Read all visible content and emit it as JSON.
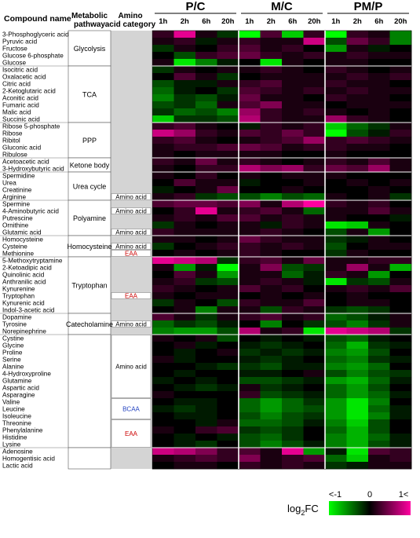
{
  "chart_data": {
    "type": "heatmap",
    "headers": {
      "compound": "Compound name",
      "pathway": "Metabolic pathway",
      "category": "Amino acid category"
    },
    "groups": [
      "P/C",
      "M/C",
      "PM/P"
    ],
    "timepoints": [
      "1h",
      "2h",
      "6h",
      "20h"
    ],
    "colorbar": {
      "label_base": "log",
      "label_sub": "2",
      "label_tail": "FC",
      "low_label": "<-1",
      "mid_label": "0",
      "high_label": "1<",
      "low_color": "#00ff00",
      "mid_color": "#000000",
      "high_color": "#ff00a0"
    },
    "compounds": [
      "3-Phosphoglyceric acid",
      "Pyruvic acid",
      "Fructose",
      "Glucose 6-phosphate",
      "Glucose",
      "Isocitric acid",
      "Oxalacetic acid",
      "Citric acid",
      "2-Ketoglutaric acid",
      "Aconitic acid",
      "Fumaric acid",
      "Malic acid",
      "Succinic acid",
      "Ribose 5-phosphate",
      "Ribose",
      "Ribitol",
      "Gluconic acid",
      "Ribulose",
      "Acetoacetic acid",
      "3-Hydroxybutyric acid",
      "Spermidine",
      "Urea",
      "Creatinine",
      "Arginine",
      "Spermine",
      "4-Aminobutyric acid",
      "Putrescine",
      "Ornithine",
      "Glutamic acid",
      "Homocysteine",
      "Cysteine",
      "Methionine",
      "5-Methoxytryptamine",
      "2-Ketoadipic acid",
      "Quinolinic acid",
      "Anthranilic acid",
      "Kynurenine",
      "Tryptophan",
      "Kynurenic acid",
      "Indol-3-acetic acid",
      "Dopamine",
      "Tyrosine",
      "Norepinephrine",
      "Cystine",
      "Glycine",
      "Proline",
      "Serine",
      "Alanine",
      "4-Hydroxyproline",
      "Glutamine",
      "Aspartic acid",
      "Asparagine",
      "Valine",
      "Leucine",
      "Isoleucine",
      "Threonine",
      "Phenylalanine",
      "Histidine",
      "Lysine",
      "Adenosine",
      "Homogentisic acid",
      "Lactic acid"
    ],
    "pathways": [
      {
        "name": "Glycolysis",
        "start": 0,
        "end": 4
      },
      {
        "name": "TCA",
        "start": 5,
        "end": 12
      },
      {
        "name": "PPP",
        "start": 13,
        "end": 17
      },
      {
        "name": "Ketone body",
        "start": 18,
        "end": 19
      },
      {
        "name": "Urea cycle",
        "start": 20,
        "end": 23
      },
      {
        "name": "Polyamine",
        "start": 24,
        "end": 28
      },
      {
        "name": "Homocysteine",
        "start": 29,
        "end": 31
      },
      {
        "name": "Tryptophan",
        "start": 32,
        "end": 39
      },
      {
        "name": "Catecholamine",
        "start": 40,
        "end": 42
      },
      {
        "name": "",
        "start": 43,
        "end": 58
      },
      {
        "name": "",
        "start": 59,
        "end": 61
      }
    ],
    "categories": [
      {
        "name": "",
        "start": 0,
        "end": 22,
        "color": "#000000",
        "white": false
      },
      {
        "name": "Amino acid",
        "start": 23,
        "end": 23,
        "color": "#000000",
        "white": true
      },
      {
        "name": "",
        "start": 24,
        "end": 24,
        "color": "#000000",
        "white": false
      },
      {
        "name": "Amino acid",
        "start": 25,
        "end": 25,
        "color": "#000000",
        "white": true
      },
      {
        "name": "",
        "start": 26,
        "end": 27,
        "color": "#000000",
        "white": false
      },
      {
        "name": "Amino acid",
        "start": 28,
        "end": 28,
        "color": "#000000",
        "white": true
      },
      {
        "name": "",
        "start": 29,
        "end": 29,
        "color": "#000000",
        "white": false
      },
      {
        "name": "Amino acid",
        "start": 30,
        "end": 30,
        "color": "#000000",
        "white": true
      },
      {
        "name": "EAA",
        "start": 31,
        "end": 31,
        "color": "#cc0000",
        "white": true
      },
      {
        "name": "",
        "start": 32,
        "end": 36,
        "color": "#000000",
        "white": false
      },
      {
        "name": "EAA",
        "start": 37,
        "end": 37,
        "color": "#cc0000",
        "white": true
      },
      {
        "name": "",
        "start": 38,
        "end": 40,
        "color": "#000000",
        "white": false
      },
      {
        "name": "Amino acid",
        "start": 41,
        "end": 41,
        "color": "#000000",
        "white": true
      },
      {
        "name": "",
        "start": 42,
        "end": 42,
        "color": "#000000",
        "white": false
      },
      {
        "name": "Amino acid",
        "start": 43,
        "end": 51,
        "color": "#000000",
        "white": true
      },
      {
        "name": "BCAA",
        "start": 52,
        "end": 54,
        "color": "#1f3fbf",
        "white": true
      },
      {
        "name": "EAA",
        "start": 55,
        "end": 58,
        "color": "#cc0000",
        "white": true
      },
      {
        "name": "",
        "start": 59,
        "end": 61,
        "color": "#000000",
        "white": false
      }
    ],
    "values": [
      [
        0.2,
        0.9,
        0.1,
        -0.2,
        -1.0,
        0.3,
        -0.8,
        0.2,
        -1.0,
        0.2,
        0.1,
        -0.5
      ],
      [
        0.1,
        0.2,
        -0.1,
        0.1,
        0.2,
        0.1,
        0.1,
        0.8,
        -0.3,
        0.4,
        0.2,
        -0.5
      ],
      [
        -0.2,
        0.1,
        0.0,
        0.2,
        0.3,
        0.1,
        0.2,
        0.0,
        -0.6,
        0.1,
        -0.1,
        0.0
      ],
      [
        0.0,
        -0.3,
        0.2,
        0.3,
        0.4,
        0.2,
        0.1,
        0.2,
        0.1,
        0.2,
        0.1,
        0.1
      ],
      [
        0.1,
        -0.9,
        -0.5,
        -0.1,
        0.0,
        -0.9,
        0.1,
        0.0,
        0.1,
        0.1,
        0.0,
        0.0
      ],
      [
        -0.2,
        0.1,
        0.0,
        0.1,
        0.1,
        0.2,
        0.1,
        0.0,
        0.2,
        0.1,
        0.0,
        0.1
      ],
      [
        0.0,
        0.3,
        0.1,
        -0.2,
        0.0,
        0.1,
        0.1,
        0.1,
        0.1,
        0.2,
        0.1,
        0.2
      ],
      [
        -0.3,
        -0.1,
        -0.1,
        0.1,
        0.2,
        0.3,
        0.1,
        0.1,
        0.2,
        0.1,
        0.1,
        0.0
      ],
      [
        -0.4,
        -0.1,
        0.0,
        -0.2,
        0.3,
        0.2,
        0.1,
        0.2,
        0.1,
        0.2,
        0.1,
        0.1
      ],
      [
        -0.5,
        -0.2,
        -0.3,
        -0.1,
        0.4,
        0.1,
        0.1,
        0.0,
        0.2,
        0.1,
        0.1,
        0.0
      ],
      [
        -0.3,
        -0.2,
        -0.4,
        0.1,
        0.3,
        0.5,
        0.1,
        0.1,
        0.0,
        0.1,
        0.1,
        0.1
      ],
      [
        -0.2,
        -0.4,
        -0.3,
        -0.5,
        0.6,
        0.2,
        0.1,
        0.2,
        0.1,
        0.0,
        0.1,
        0.0
      ],
      [
        -0.8,
        -0.2,
        -0.2,
        -0.3,
        0.7,
        0.2,
        0.1,
        0.1,
        0.6,
        0.2,
        0.1,
        0.0
      ],
      [
        0.2,
        0.3,
        0.1,
        0.0,
        -0.1,
        0.2,
        0.1,
        0.2,
        -0.8,
        -0.4,
        -0.2,
        0.1
      ],
      [
        0.8,
        0.6,
        0.2,
        0.1,
        0.3,
        0.2,
        0.4,
        0.2,
        -1.0,
        -0.3,
        -0.1,
        0.2
      ],
      [
        0.2,
        0.3,
        0.1,
        0.0,
        0.1,
        0.2,
        0.3,
        0.6,
        0.2,
        0.3,
        0.2,
        0.1
      ],
      [
        0.1,
        0.2,
        0.2,
        0.3,
        0.4,
        0.3,
        0.1,
        0.2,
        0.2,
        0.1,
        0.1,
        0.0
      ],
      [
        0.1,
        0.0,
        0.1,
        0.1,
        0.1,
        0.1,
        0.0,
        0.0,
        0.1,
        0.0,
        0.0,
        0.0
      ],
      [
        0.2,
        0.1,
        0.4,
        0.1,
        0.2,
        0.1,
        0.0,
        0.1,
        0.2,
        0.1,
        0.3,
        0.1
      ],
      [
        0.1,
        0.0,
        0.2,
        0.2,
        0.7,
        0.5,
        0.6,
        0.2,
        0.4,
        0.3,
        0.6,
        0.1
      ],
      [
        0.1,
        0.0,
        0.2,
        0.0,
        0.1,
        0.0,
        0.1,
        0.1,
        0.1,
        0.0,
        0.0,
        0.0
      ],
      [
        0.0,
        0.3,
        0.1,
        0.1,
        -0.1,
        0.0,
        0.0,
        0.1,
        0.0,
        0.1,
        0.0,
        0.1
      ],
      [
        -0.1,
        0.0,
        0.1,
        0.4,
        0.0,
        0.0,
        0.1,
        0.0,
        0.0,
        0.0,
        0.1,
        0.0
      ],
      [
        0.1,
        0.2,
        -0.2,
        -0.3,
        -0.3,
        -0.5,
        -0.3,
        -0.4,
        0.1,
        0.0,
        0.1,
        -0.2
      ],
      [
        0.3,
        0.4,
        0.4,
        0.3,
        0.5,
        0.1,
        0.7,
        1.0,
        0.2,
        0.1,
        0.2,
        0.0
      ],
      [
        0.0,
        0.2,
        0.9,
        0.1,
        0.2,
        0.3,
        0.1,
        -0.4,
        0.1,
        0.1,
        0.3,
        0.1
      ],
      [
        0.1,
        0.2,
        0.1,
        0.3,
        0.3,
        0.1,
        0.2,
        0.1,
        0.1,
        0.0,
        0.0,
        -0.1
      ],
      [
        -0.2,
        0.1,
        0.0,
        0.1,
        0.1,
        -0.1,
        0.2,
        0.1,
        -0.9,
        -0.8,
        0.1,
        0.0
      ],
      [
        0.2,
        0.1,
        0.1,
        0.1,
        0.1,
        0.2,
        0.1,
        0.0,
        -0.3,
        0.1,
        -0.6,
        0.0
      ],
      [
        0.1,
        0.1,
        0.0,
        0.1,
        0.4,
        0.2,
        0.1,
        0.1,
        -0.2,
        -0.1,
        0.1,
        0.0
      ],
      [
        -0.2,
        0.0,
        0.1,
        0.2,
        0.2,
        0.1,
        0.2,
        0.1,
        -0.3,
        0.0,
        0.1,
        0.1
      ],
      [
        0.0,
        0.1,
        0.0,
        0.1,
        0.2,
        0.1,
        0.0,
        0.0,
        -0.2,
        0.1,
        0.0,
        0.0
      ],
      [
        0.9,
        0.8,
        0.7,
        -0.2,
        0.2,
        0.3,
        0.1,
        0.4,
        0.1,
        0.1,
        0.2,
        0.2
      ],
      [
        0.1,
        -0.6,
        -0.1,
        -1.0,
        0.1,
        0.5,
        -0.3,
        -0.2,
        0.1,
        0.6,
        0.1,
        -0.7
      ],
      [
        0.0,
        0.3,
        0.1,
        -0.6,
        0.1,
        0.1,
        -0.4,
        -0.1,
        0.2,
        0.1,
        -0.6,
        0.0
      ],
      [
        0.1,
        0.2,
        -0.2,
        -0.3,
        0.1,
        0.2,
        0.1,
        -0.1,
        -0.9,
        -0.2,
        -0.3,
        0.1
      ],
      [
        0.2,
        0.1,
        0.0,
        0.1,
        0.3,
        0.1,
        0.2,
        0.0,
        0.1,
        0.2,
        0.1,
        0.3
      ],
      [
        0.1,
        0.0,
        0.1,
        0.1,
        0.0,
        0.1,
        0.0,
        0.1,
        0.0,
        0.1,
        0.0,
        0.0
      ],
      [
        -0.2,
        0.1,
        0.0,
        -0.3,
        0.2,
        0.1,
        0.1,
        0.3,
        0.0,
        0.1,
        0.1,
        0.0
      ],
      [
        0.0,
        0.1,
        -0.5,
        0.1,
        0.1,
        -0.3,
        0.2,
        0.1,
        -0.2,
        -0.3,
        -0.2,
        0.0
      ],
      [
        0.3,
        0.1,
        -0.2,
        0.1,
        0.2,
        0.3,
        0.1,
        0.2,
        -0.4,
        -0.3,
        -0.1,
        0.1
      ],
      [
        -0.4,
        -0.2,
        -0.3,
        -0.1,
        0.0,
        -0.5,
        0.0,
        -0.2,
        -0.3,
        -0.5,
        -0.2,
        0.1
      ],
      [
        -0.5,
        -0.6,
        -0.6,
        -0.3,
        0.7,
        0.1,
        0.2,
        -0.9,
        0.9,
        0.8,
        0.7,
        -0.2
      ],
      [
        0.1,
        0.0,
        0.1,
        -0.3,
        0.0,
        -0.1,
        0.0,
        -0.1,
        -0.3,
        -0.4,
        -0.1,
        0.0
      ],
      [
        0.0,
        0.1,
        -0.1,
        0.0,
        -0.1,
        -0.2,
        -0.1,
        0.0,
        -0.4,
        -0.7,
        -0.2,
        -0.1
      ],
      [
        0.0,
        -0.1,
        0.0,
        0.1,
        -0.2,
        -0.1,
        -0.2,
        -0.1,
        -0.5,
        -0.6,
        -0.3,
        0.0
      ],
      [
        0.1,
        -0.1,
        0.0,
        0.0,
        -0.1,
        -0.2,
        -0.1,
        0.0,
        -0.4,
        -0.5,
        -0.2,
        -0.1
      ],
      [
        0.0,
        0.0,
        -0.1,
        -0.2,
        -0.2,
        -0.3,
        -0.1,
        -0.1,
        -0.5,
        -0.6,
        -0.4,
        0.0
      ],
      [
        0.0,
        -0.1,
        0.0,
        0.0,
        -0.1,
        -0.1,
        0.0,
        0.1,
        -0.3,
        -0.5,
        -0.3,
        -0.2
      ],
      [
        -0.1,
        0.0,
        -0.1,
        0.0,
        -0.3,
        -0.3,
        -0.2,
        -0.1,
        -0.6,
        -0.7,
        -0.4,
        -0.1
      ],
      [
        0.0,
        -0.1,
        -0.2,
        -0.1,
        0.1,
        -0.2,
        -0.1,
        0.0,
        -0.4,
        -0.6,
        -0.3,
        0.0
      ],
      [
        0.1,
        0.0,
        0.0,
        0.0,
        0.2,
        -0.3,
        -0.2,
        -0.1,
        -0.4,
        -0.6,
        -0.4,
        -0.1
      ],
      [
        0.0,
        -0.1,
        -0.1,
        0.0,
        -0.4,
        -0.6,
        -0.4,
        -0.2,
        -0.6,
        -0.9,
        -0.5,
        0.0
      ],
      [
        -0.1,
        -0.2,
        -0.1,
        0.0,
        -0.4,
        -0.6,
        -0.4,
        -0.3,
        -0.6,
        -0.9,
        -0.4,
        -0.1
      ],
      [
        0.0,
        -0.1,
        -0.1,
        0.0,
        -0.3,
        -0.5,
        -0.3,
        -0.2,
        -0.6,
        -0.9,
        -0.5,
        -0.1
      ],
      [
        0.0,
        0.0,
        -0.1,
        0.1,
        -0.4,
        -0.4,
        -0.3,
        -0.1,
        -0.5,
        -0.8,
        -0.3,
        0.0
      ],
      [
        0.1,
        0.0,
        0.2,
        0.3,
        -0.2,
        -0.3,
        -0.2,
        0.0,
        -0.4,
        -0.7,
        -0.3,
        0.0
      ],
      [
        0.0,
        -0.1,
        0.0,
        -0.1,
        -0.3,
        -0.4,
        -0.2,
        0.0,
        -0.5,
        -0.7,
        -0.4,
        -0.1
      ],
      [
        0.0,
        -0.1,
        -0.2,
        0.0,
        -0.3,
        -0.5,
        -0.3,
        -0.1,
        -0.5,
        -0.7,
        -0.3,
        -0.1
      ],
      [
        0.8,
        0.7,
        0.5,
        0.2,
        0.3,
        0.1,
        0.9,
        -0.6,
        -0.1,
        -0.9,
        0.3,
        0.2
      ],
      [
        0.1,
        0.2,
        0.3,
        0.2,
        0.5,
        0.1,
        0.2,
        0.3,
        -0.4,
        -0.8,
        0.1,
        0.2
      ],
      [
        0.0,
        0.1,
        0.1,
        0.0,
        0.2,
        0.1,
        0.2,
        0.1,
        -0.2,
        -0.1,
        0.1,
        0.1
      ]
    ]
  }
}
